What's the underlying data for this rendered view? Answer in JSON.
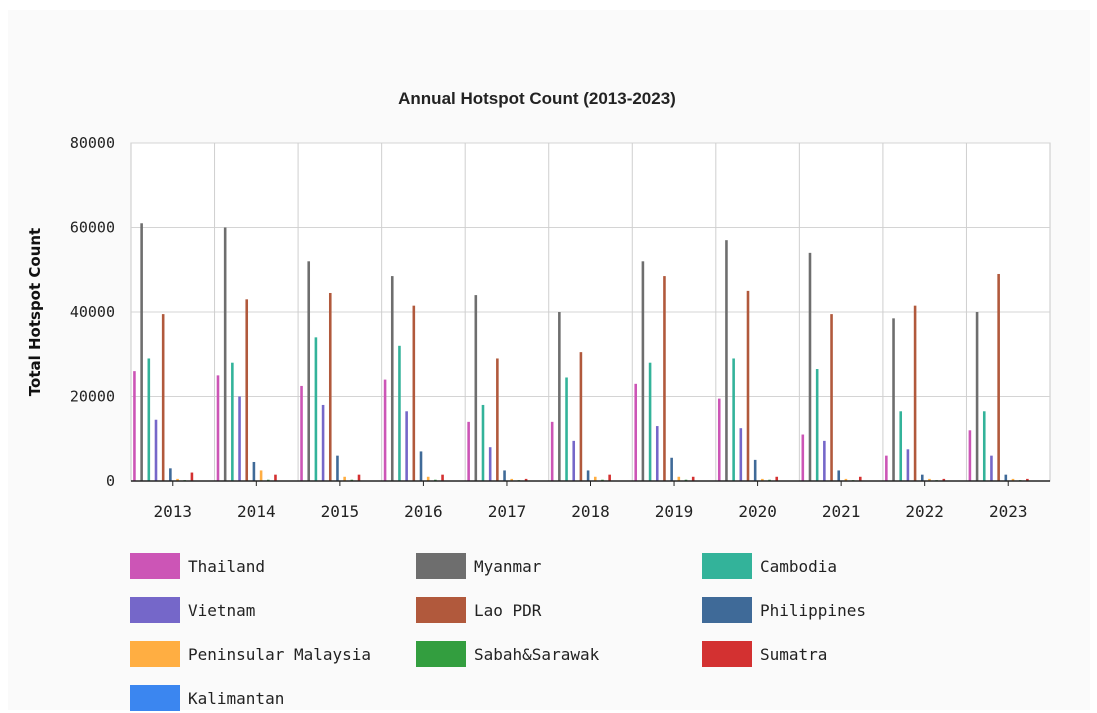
{
  "chart_data": {
    "type": "bar",
    "title": "Annual Hotspot Count (2013-2023)",
    "ylabel": "Total Hotspot Count",
    "xlabel": "",
    "ylim": [
      0,
      80000
    ],
    "yticks": [
      "0",
      "20000",
      "40000",
      "60000",
      "80000"
    ],
    "grid": true,
    "legend_position": "bottom",
    "categories": [
      "2013",
      "2014",
      "2015",
      "2016",
      "2017",
      "2018",
      "2019",
      "2020",
      "2021",
      "2022",
      "2023"
    ],
    "series": [
      {
        "name": "Thailand",
        "color": "#cc55b6",
        "values": [
          26000,
          25000,
          22500,
          24000,
          14000,
          14000,
          23000,
          19500,
          11000,
          6000,
          12000
        ]
      },
      {
        "name": "Myanmar",
        "color": "#6e6e6e",
        "values": [
          61000,
          60000,
          52000,
          48500,
          44000,
          40000,
          52000,
          57000,
          54000,
          38500,
          40000
        ]
      },
      {
        "name": "Cambodia",
        "color": "#33b39a",
        "values": [
          29000,
          28000,
          34000,
          32000,
          18000,
          24500,
          28000,
          29000,
          26500,
          16500,
          16500
        ]
      },
      {
        "name": "Vietnam",
        "color": "#7567c9",
        "values": [
          14500,
          20000,
          18000,
          16500,
          8000,
          9500,
          13000,
          12500,
          9500,
          7500,
          6000
        ]
      },
      {
        "name": "Lao PDR",
        "color": "#b1593c",
        "values": [
          39500,
          43000,
          44500,
          41500,
          29000,
          30500,
          48500,
          45000,
          39500,
          41500,
          49000
        ]
      },
      {
        "name": "Philippines",
        "color": "#3f6a98",
        "values": [
          3000,
          4500,
          6000,
          7000,
          2500,
          2500,
          5500,
          5000,
          2500,
          1500,
          1500
        ]
      },
      {
        "name": "Peninsular Malaysia",
        "color": "#ffae42",
        "values": [
          500,
          2500,
          1000,
          1000,
          500,
          1000,
          1000,
          500,
          500,
          500,
          500
        ]
      },
      {
        "name": "Sabah&Sarawak",
        "color": "#339e3f",
        "values": [
          200,
          300,
          300,
          300,
          200,
          300,
          300,
          300,
          200,
          200,
          200
        ]
      },
      {
        "name": "Sumatra",
        "color": "#d33131",
        "values": [
          2000,
          1500,
          1500,
          1500,
          500,
          1500,
          1000,
          1000,
          1000,
          500,
          500
        ]
      },
      {
        "name": "Kalimantan",
        "color": "#3b86f0",
        "values": [
          100,
          100,
          100,
          100,
          100,
          100,
          100,
          100,
          100,
          100,
          100
        ]
      }
    ]
  }
}
